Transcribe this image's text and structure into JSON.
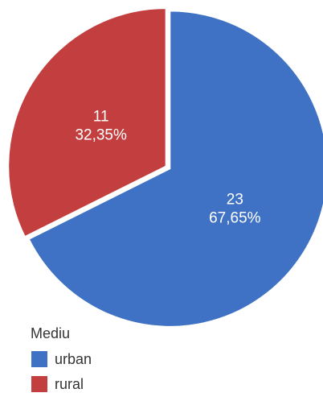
{
  "chart_data": {
    "type": "pie",
    "legend_title": "Mediu",
    "legend_position": "bottom-left",
    "slices": [
      {
        "name": "urban",
        "value": 23,
        "percent_label": "67,65%",
        "color": "#3f72c4"
      },
      {
        "name": "rural",
        "value": 11,
        "percent_label": "32,35%",
        "color": "#c33f3f"
      }
    ]
  }
}
